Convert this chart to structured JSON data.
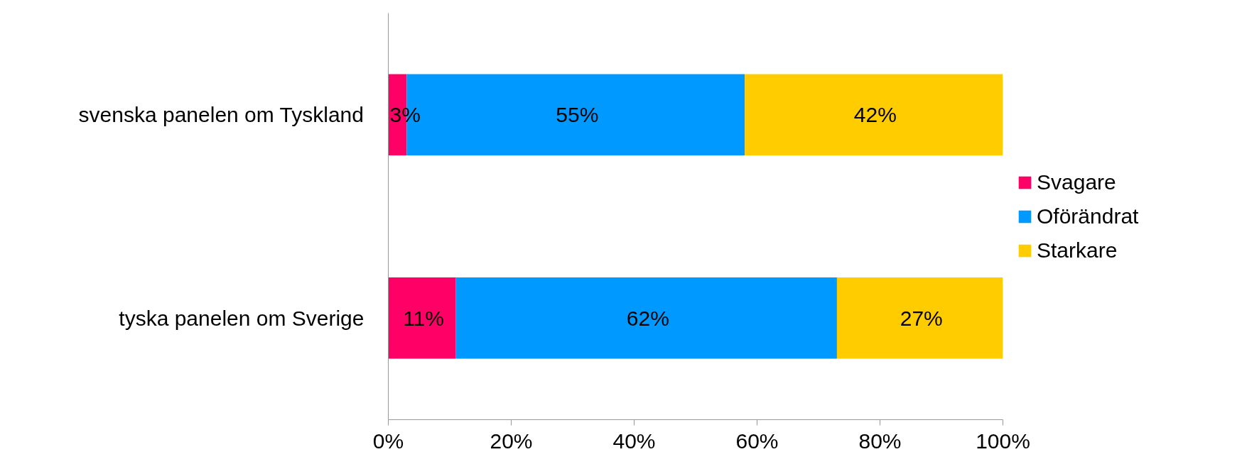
{
  "chart_data": {
    "type": "bar",
    "orientation": "horizontal",
    "stacked": true,
    "categories": [
      "svenska panelen om Tyskland",
      "tyska panelen om Sverige"
    ],
    "series": [
      {
        "name": "Svagare",
        "color": "#ff0066",
        "values": [
          3,
          11
        ],
        "value_labels": [
          "3%",
          "11%"
        ]
      },
      {
        "name": "Oförändrat",
        "color": "#0099ff",
        "values": [
          55,
          62
        ],
        "value_labels": [
          "55%",
          "62%"
        ]
      },
      {
        "name": "Starkare",
        "color": "#ffcc00",
        "values": [
          42,
          27
        ],
        "value_labels": [
          "42%",
          "27%"
        ]
      }
    ],
    "xlim": [
      0,
      100
    ],
    "xticks": [
      {
        "value": 0,
        "label": "0%"
      },
      {
        "value": 20,
        "label": "20%"
      },
      {
        "value": 40,
        "label": "40%"
      },
      {
        "value": 60,
        "label": "60%"
      },
      {
        "value": 80,
        "label": "80%"
      },
      {
        "value": 100,
        "label": "100%"
      }
    ],
    "grid": false,
    "legend": "right"
  }
}
